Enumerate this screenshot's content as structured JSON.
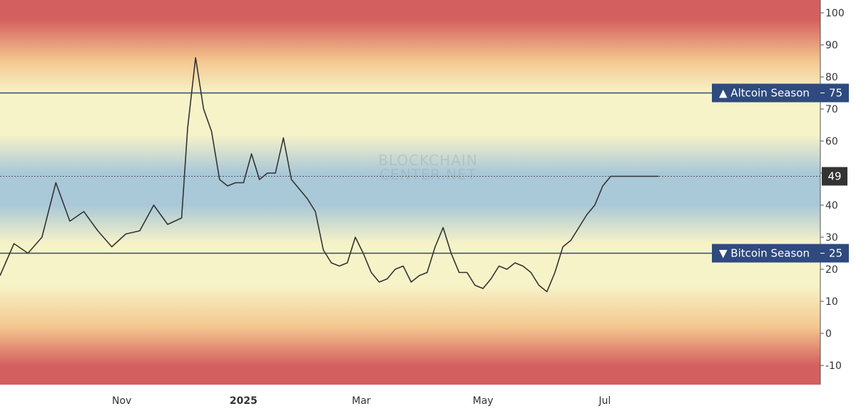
{
  "chart_data": {
    "type": "line",
    "title": "",
    "xlabel": "",
    "ylabel": "",
    "ylim": [
      -16,
      104
    ],
    "y_ticks": [
      100,
      90,
      80,
      70,
      60,
      50,
      40,
      30,
      20,
      10,
      0,
      -10
    ],
    "x_ticks": [
      {
        "label": "Nov",
        "date": "2024-11-01",
        "bold": false
      },
      {
        "label": "2025",
        "date": "2025-01-01",
        "bold": true
      },
      {
        "label": "Mar",
        "date": "2025-03-01",
        "bold": false
      },
      {
        "label": "May",
        "date": "2025-05-01",
        "bold": false
      },
      {
        "label": "Jul",
        "date": "2025-07-01",
        "bold": false
      }
    ],
    "xlim": [
      "2024-09-01",
      "2025-10-17"
    ],
    "grid": false,
    "line_color": "#333333",
    "band_colors": {
      "extreme": "#d45f5f",
      "high": "#f4c78f",
      "mid": "#f7f3c8",
      "neutral": "#a9c8d8"
    },
    "reference_lines": [
      {
        "label": "▲ Altcoin Season",
        "value": 75,
        "color": "#2e4a7f"
      },
      {
        "label": "▼ Bitcoin Season",
        "value": 25,
        "color": "#2e4a7f"
      }
    ],
    "current_value": {
      "label": "49",
      "value": 49,
      "color": "#333333"
    },
    "watermark": {
      "line1": "BLOCKCHAIN",
      "line2": "CENTER.NET"
    },
    "series": [
      {
        "x": [
          "2024-09-01",
          "2024-09-08",
          "2024-09-15",
          "2024-09-22",
          "2024-09-29",
          "2024-10-06",
          "2024-10-13",
          "2024-10-20",
          "2024-10-27",
          "2024-11-03",
          "2024-11-10",
          "2024-11-17",
          "2024-11-24",
          "2024-12-01",
          "2024-12-04",
          "2024-12-08",
          "2024-12-12",
          "2024-12-16",
          "2024-12-20",
          "2024-12-24",
          "2024-12-28",
          "2025-01-01",
          "2025-01-05",
          "2025-01-09",
          "2025-01-13",
          "2025-01-17",
          "2025-01-21",
          "2025-01-25",
          "2025-01-29",
          "2025-02-02",
          "2025-02-06",
          "2025-02-10",
          "2025-02-14",
          "2025-02-18",
          "2025-02-22",
          "2025-02-26",
          "2025-03-02",
          "2025-03-06",
          "2025-03-10",
          "2025-03-14",
          "2025-03-18",
          "2025-03-22",
          "2025-03-26",
          "2025-03-30",
          "2025-04-03",
          "2025-04-07",
          "2025-04-11",
          "2025-04-15",
          "2025-04-19",
          "2025-04-23",
          "2025-04-27",
          "2025-05-01",
          "2025-05-05",
          "2025-05-09",
          "2025-05-13",
          "2025-05-17",
          "2025-05-21",
          "2025-05-25",
          "2025-05-29",
          "2025-06-02",
          "2025-06-06",
          "2025-06-10",
          "2025-06-14",
          "2025-06-18",
          "2025-06-22",
          "2025-06-26",
          "2025-06-30",
          "2025-07-04",
          "2025-07-08",
          "2025-07-12",
          "2025-07-16",
          "2025-07-20",
          "2025-07-24",
          "2025-07-28"
        ],
        "values": [
          18,
          28,
          25,
          30,
          47,
          35,
          38,
          32,
          27,
          31,
          32,
          40,
          34,
          36,
          64,
          86,
          70,
          63,
          48,
          46,
          47,
          47,
          56,
          48,
          50,
          50,
          61,
          48,
          45,
          42,
          38,
          26,
          22,
          21,
          22,
          30,
          25,
          19,
          16,
          17,
          20,
          21,
          16,
          18,
          19,
          27,
          33,
          25,
          19,
          19,
          15,
          14,
          17,
          21,
          20,
          22,
          21,
          19,
          15,
          13,
          19,
          27,
          29,
          33,
          37,
          40,
          46,
          49,
          49,
          49,
          49,
          49,
          49,
          49
        ]
      }
    ]
  }
}
